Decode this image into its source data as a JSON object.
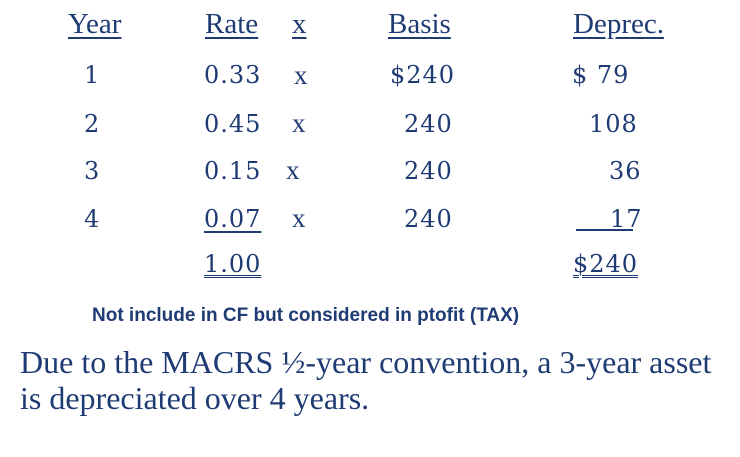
{
  "table": {
    "headers": {
      "year": "Year",
      "rate": "Rate",
      "times": "x",
      "basis": "Basis",
      "deprec": "Deprec."
    },
    "rows": [
      {
        "year": "1",
        "rate": "0.33",
        "times": "x",
        "basis": "$240",
        "deprec": "$ 79"
      },
      {
        "year": "2",
        "rate": "0.45",
        "times": "x",
        "basis": "240",
        "deprec": "108"
      },
      {
        "year": "3",
        "rate": "0.15",
        "times": "x",
        "basis": "240",
        "deprec": "36"
      },
      {
        "year": "4",
        "rate": "0.07",
        "times": "x",
        "basis": "240",
        "deprec": "17"
      }
    ],
    "totals": {
      "rate": "1.00",
      "deprec": "$240"
    }
  },
  "note": "Not include in CF but considered in ptofit (TAX)",
  "paragraph": "Due to the MACRS ½-year convention, a 3-year asset is depreciated over 4 years."
}
